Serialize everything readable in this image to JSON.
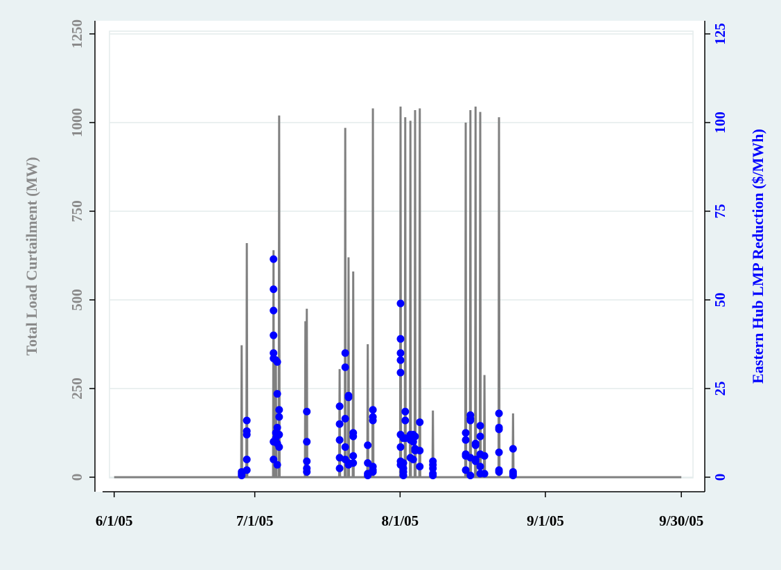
{
  "chart_data": {
    "type": "line",
    "y_label": "Total Load Curtailment (MW)",
    "y2_label": "Eastern Hub LMP Reduction ($/MWh)",
    "xlim": [
      -4.1,
      126
    ],
    "xticks": [
      {
        "value": 0,
        "label": "6/1/05"
      },
      {
        "value": 30,
        "label": "7/1/05"
      },
      {
        "value": 61,
        "label": "8/1/05"
      },
      {
        "value": 92,
        "label": "9/1/05"
      },
      {
        "value": 121,
        "label": "9/30/05"
      }
    ],
    "ylim": [
      -41,
      1287
    ],
    "yticks": [
      0,
      250,
      500,
      750,
      1000,
      1250
    ],
    "y2lim": [
      -4.1,
      128.7
    ],
    "y2ticks": [
      0,
      25,
      50,
      75,
      100,
      125
    ],
    "grid": true,
    "series": [
      {
        "type": "line",
        "color": "#808080",
        "x": [
          0,
          27.1,
          27.2,
          27.3,
          28.2,
          28.3,
          28.4,
          33.9,
          34.0,
          34.1,
          34.4,
          34.5,
          34.6,
          35.1,
          35.2,
          35.3,
          40.7,
          40.8,
          40.9,
          41.0,
          41.1,
          41.2,
          48.0,
          48.1,
          48.2,
          49.2,
          49.3,
          49.4,
          49.9,
          50.0,
          50.1,
          50.9,
          51.0,
          51.1,
          54.0,
          54.1,
          54.2,
          55.1,
          55.2,
          55.3,
          61.0,
          61.1,
          61.2,
          62.0,
          62.1,
          62.2,
          63.1,
          63.2,
          63.3,
          64.1,
          64.2,
          64.3,
          65.1,
          65.2,
          65.3,
          67.9,
          68.0,
          68.1,
          74.9,
          75.0,
          75.1,
          75.9,
          76.0,
          76.1,
          77.0,
          77.1,
          77.2,
          78.0,
          78.1,
          78.2,
          78.9,
          79.0,
          79.1,
          82.0,
          82.1,
          82.2,
          85.0,
          85.1,
          85.2,
          121
        ],
        "values": [
          0,
          0,
          372,
          0,
          0,
          660,
          0,
          0,
          640,
          0,
          0,
          330,
          0,
          0,
          1020,
          0,
          0,
          440,
          0,
          0,
          475,
          0,
          0,
          305,
          0,
          0,
          985,
          0,
          0,
          620,
          0,
          0,
          580,
          0,
          0,
          375,
          0,
          0,
          1040,
          0,
          0,
          1045,
          0,
          0,
          1015,
          0,
          0,
          1005,
          0,
          0,
          1035,
          0,
          0,
          1040,
          0,
          0,
          188,
          0,
          0,
          1000,
          0,
          0,
          1035,
          0,
          0,
          1045,
          0,
          0,
          1030,
          0,
          0,
          288,
          0,
          0,
          1015,
          0,
          0,
          180,
          0,
          0
        ]
      },
      {
        "type": "scatter",
        "color": "#0000ff",
        "axis": "y2",
        "x": [
          27.2,
          27.2,
          27.2,
          28.3,
          28.3,
          28.3,
          28.3,
          28.3,
          34.0,
          34.0,
          34.0,
          34.0,
          34.0,
          34.0,
          34.0,
          34.0,
          34.5,
          34.5,
          34.5,
          34.5,
          34.8,
          34.8,
          34.8,
          34.8,
          34.8,
          35.2,
          35.2,
          35.2,
          35.2,
          41.1,
          41.1,
          41.1,
          41.1,
          41.1,
          48.1,
          48.1,
          48.1,
          48.1,
          48.1,
          49.3,
          49.3,
          49.3,
          49.3,
          49.3,
          50.0,
          50.0,
          50.0,
          50.0,
          51.0,
          51.0,
          51.0,
          51.0,
          54.1,
          54.1,
          54.1,
          54.1,
          55.2,
          55.2,
          55.2,
          55.2,
          55.2,
          55.2,
          61.1,
          61.1,
          61.1,
          61.1,
          61.1,
          61.1,
          61.1,
          61.1,
          61.1,
          61.7,
          61.7,
          61.7,
          61.7,
          61.7,
          62.1,
          62.1,
          62.1,
          63.2,
          63.2,
          63.2,
          63.2,
          63.8,
          63.8,
          63.8,
          64.2,
          64.2,
          64.2,
          65.2,
          65.2,
          65.2,
          68.0,
          68.0,
          68.0,
          68.0,
          68.0,
          75.0,
          75.0,
          75.0,
          75.0,
          75.0,
          76.0,
          76.0,
          76.0,
          76.0,
          76.0,
          77.1,
          77.1,
          77.1,
          77.1,
          78.1,
          78.1,
          78.1,
          78.1,
          78.1,
          79.0,
          79.0,
          82.1,
          82.1,
          82.1,
          82.1,
          82.1,
          82.1,
          85.1,
          85.1,
          85.1,
          85.1
        ],
        "values": [
          1.5,
          0.5,
          1,
          16,
          13,
          12,
          5,
          2,
          61.5,
          53,
          47,
          40,
          35,
          33.5,
          10,
          5,
          33,
          12.5,
          11,
          10,
          32.5,
          23.5,
          14,
          9.5,
          3.5,
          19,
          17,
          12,
          8.5,
          18.5,
          10,
          4.5,
          2.5,
          1.5,
          20,
          15,
          10.5,
          5.5,
          2.5,
          35,
          31,
          16.5,
          8.5,
          5,
          23,
          22.5,
          4,
          3.5,
          12.5,
          11.5,
          6,
          4,
          9,
          4,
          1,
          0.5,
          19,
          17,
          16,
          3,
          2,
          1.5,
          49,
          39,
          35,
          33,
          29.5,
          12,
          8.5,
          4.5,
          3.5,
          11,
          2.5,
          1.5,
          0.5,
          4,
          18.5,
          16,
          11,
          12,
          11.5,
          10.5,
          5.5,
          12,
          10,
          5,
          11.5,
          8,
          7.5,
          15.5,
          7.5,
          3,
          4.5,
          3.5,
          2.5,
          1,
          0.5,
          12.5,
          10.5,
          6.5,
          6,
          2,
          17.5,
          16.5,
          16,
          5.5,
          0.5,
          9.5,
          9,
          5,
          4.5,
          14.5,
          11.5,
          6.5,
          3,
          1,
          6,
          1,
          18,
          14,
          13.5,
          7,
          2,
          1.5,
          8,
          1.5,
          1,
          0.5
        ]
      }
    ]
  }
}
